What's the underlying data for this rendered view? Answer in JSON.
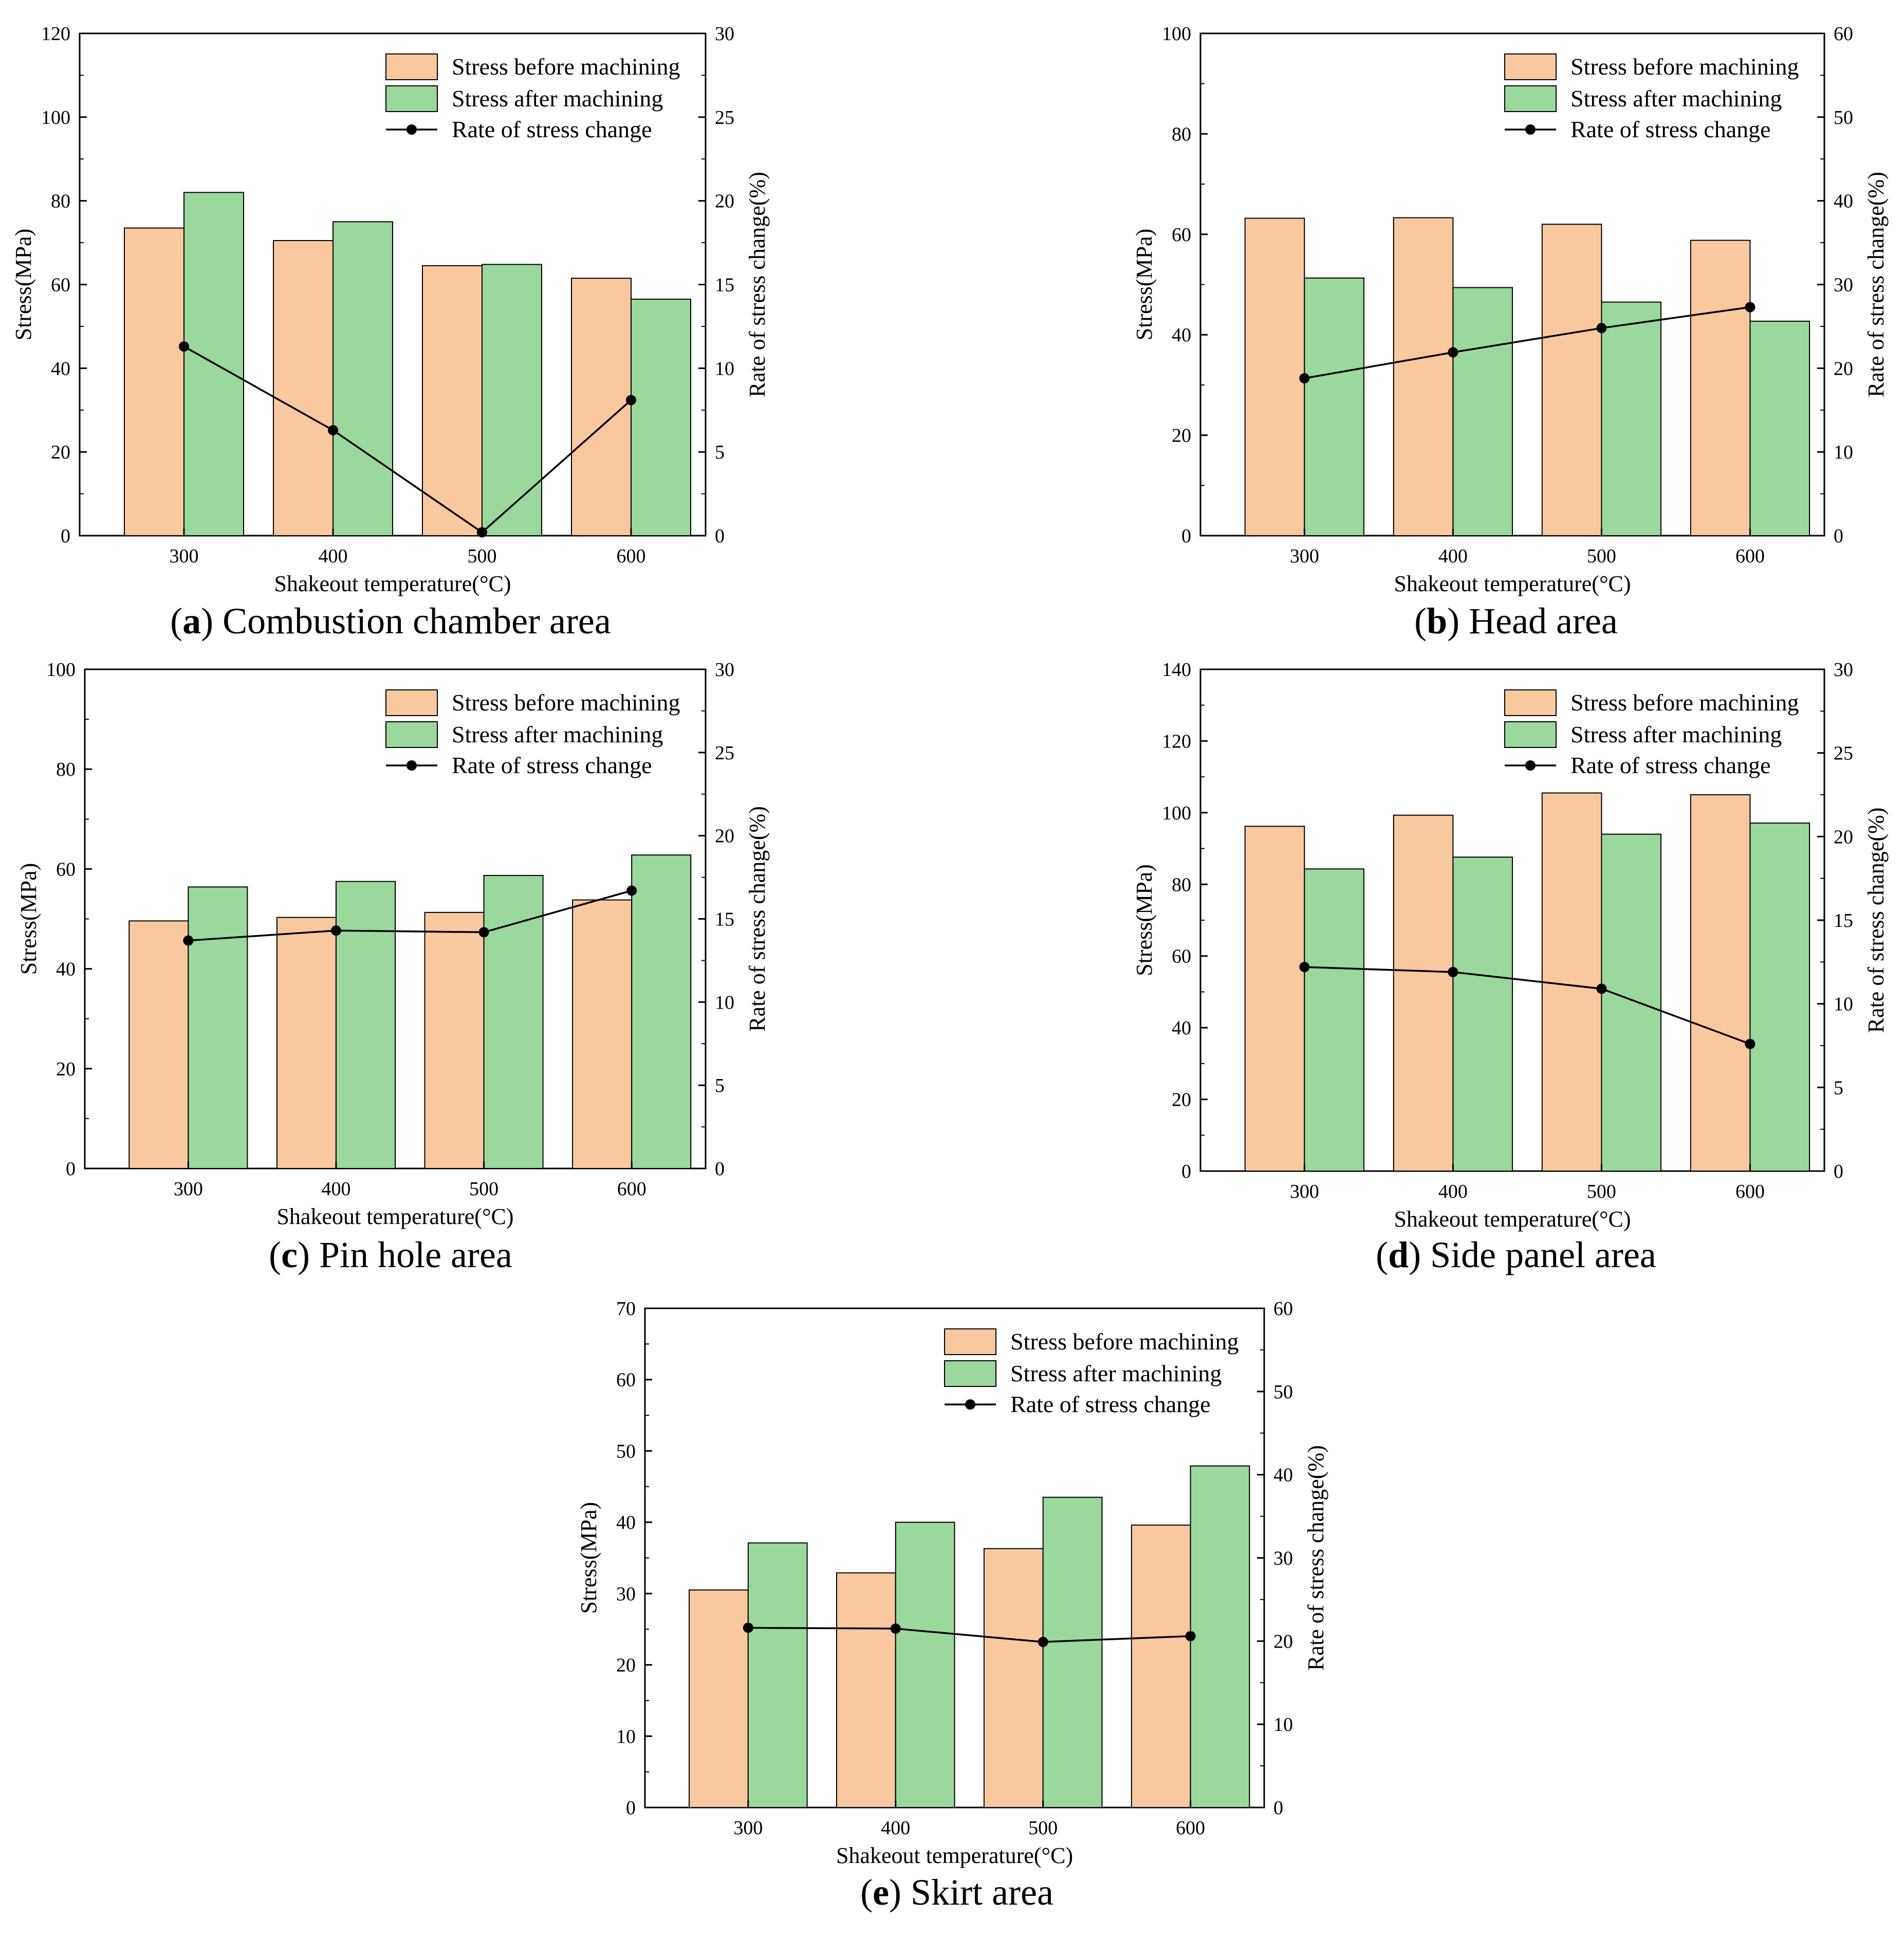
{
  "colors": {
    "before": "#f9c89f",
    "after": "#9ad89c",
    "line": "#000000"
  },
  "chart_data": [
    {
      "id": "a",
      "type": "bar",
      "caption_letter": "a",
      "caption_text": "Combustion chamber area",
      "xlabel": "Shakeout temperature(°C)",
      "ylabel": "Stress(MPa)",
      "y2label": "Rate of stress change(%)",
      "categories": [
        "300",
        "400",
        "500",
        "600"
      ],
      "ylim": [
        0,
        120
      ],
      "yticks": [
        "0",
        "20",
        "40",
        "60",
        "80",
        "100",
        "120"
      ],
      "y2lim": [
        0,
        30
      ],
      "y2ticks": [
        "0",
        "5",
        "10",
        "15",
        "20",
        "25",
        "30"
      ],
      "legend": [
        "Stress before machining",
        "Stress after machining",
        "Rate of stress change"
      ],
      "series": [
        {
          "name": "Stress before machining",
          "kind": "bar",
          "values": [
            73.5,
            70.5,
            64.5,
            61.5
          ]
        },
        {
          "name": "Stress after machining",
          "kind": "bar",
          "values": [
            82,
            75,
            64.8,
            56.5
          ]
        },
        {
          "name": "Rate of stress change",
          "kind": "line",
          "axis": "right",
          "values": [
            11.3,
            6.3,
            0.2,
            8.1
          ]
        }
      ]
    },
    {
      "id": "b",
      "type": "bar",
      "caption_letter": "b",
      "caption_text": "Head area",
      "xlabel": "Shakeout temperature(°C)",
      "ylabel": "Stress(MPa)",
      "y2label": "Rate of stress change(%)",
      "categories": [
        "300",
        "400",
        "500",
        "600"
      ],
      "ylim": [
        0,
        100
      ],
      "yticks": [
        "0",
        "20",
        "40",
        "60",
        "80",
        "100"
      ],
      "y2lim": [
        0,
        60
      ],
      "y2ticks": [
        "0",
        "10",
        "20",
        "30",
        "40",
        "50",
        "60"
      ],
      "legend": [
        "Stress before machining",
        "Stress after machining",
        "Rate of stress change"
      ],
      "series": [
        {
          "name": "Stress before machining",
          "kind": "bar",
          "values": [
            63.2,
            63.3,
            62,
            58.8
          ]
        },
        {
          "name": "Stress after machining",
          "kind": "bar",
          "values": [
            51.3,
            49.4,
            46.5,
            42.7
          ]
        },
        {
          "name": "Rate of stress change",
          "kind": "line",
          "axis": "right",
          "values": [
            18.8,
            21.9,
            24.8,
            27.3
          ]
        }
      ]
    },
    {
      "id": "c",
      "type": "bar",
      "caption_letter": "c",
      "caption_text": "Pin hole area",
      "xlabel": "Shakeout temperature(°C)",
      "ylabel": "Stress(MPa)",
      "y2label": "Rate of stress change(%)",
      "categories": [
        "300",
        "400",
        "500",
        "600"
      ],
      "ylim": [
        0,
        100
      ],
      "yticks": [
        "0",
        "20",
        "40",
        "60",
        "80",
        "100"
      ],
      "y2lim": [
        0,
        30
      ],
      "y2ticks": [
        "0",
        "5",
        "10",
        "15",
        "20",
        "25",
        "30"
      ],
      "legend": [
        "Stress before machining",
        "Stress after machining",
        "Rate of stress change"
      ],
      "series": [
        {
          "name": "Stress before machining",
          "kind": "bar",
          "values": [
            49.6,
            50.3,
            51.3,
            53.8
          ]
        },
        {
          "name": "Stress after machining",
          "kind": "bar",
          "values": [
            56.4,
            57.5,
            58.7,
            62.8
          ]
        },
        {
          "name": "Rate of stress change",
          "kind": "line",
          "axis": "right",
          "values": [
            13.7,
            14.3,
            14.2,
            16.7
          ]
        }
      ]
    },
    {
      "id": "d",
      "type": "bar",
      "caption_letter": "d",
      "caption_text": "Side panel area",
      "xlabel": "Shakeout temperature(°C)",
      "ylabel": "Stress(MPa)",
      "y2label": "Rate of stress change(%)",
      "categories": [
        "300",
        "400",
        "500",
        "600"
      ],
      "ylim": [
        0,
        140
      ],
      "yticks": [
        "0",
        "20",
        "40",
        "60",
        "80",
        "100",
        "120",
        "140"
      ],
      "y2lim": [
        0,
        30
      ],
      "y2ticks": [
        "0",
        "5",
        "10",
        "15",
        "20",
        "25",
        "30"
      ],
      "legend": [
        "Stress before machining",
        "Stress after machining",
        "Rate of stress change"
      ],
      "series": [
        {
          "name": "Stress before machining",
          "kind": "bar",
          "values": [
            96.2,
            99.3,
            105.5,
            105
          ]
        },
        {
          "name": "Stress after machining",
          "kind": "bar",
          "values": [
            84.3,
            87.6,
            94,
            97.1
          ]
        },
        {
          "name": "Rate of stress change",
          "kind": "line",
          "axis": "right",
          "values": [
            12.2,
            11.9,
            10.9,
            7.6
          ]
        }
      ]
    },
    {
      "id": "e",
      "type": "bar",
      "caption_letter": "e",
      "caption_text": "Skirt area",
      "xlabel": "Shakeout temperature(°C)",
      "ylabel": "Stress(MPa)",
      "y2label": "Rate of stress change(%)",
      "categories": [
        "300",
        "400",
        "500",
        "600"
      ],
      "ylim": [
        0,
        70
      ],
      "yticks": [
        "0",
        "10",
        "20",
        "30",
        "40",
        "50",
        "60",
        "70"
      ],
      "y2lim": [
        0,
        60
      ],
      "y2ticks": [
        "0",
        "10",
        "20",
        "30",
        "40",
        "50",
        "60"
      ],
      "legend": [
        "Stress before machining",
        "Stress after machining",
        "Rate of stress change"
      ],
      "series": [
        {
          "name": "Stress before machining",
          "kind": "bar",
          "values": [
            30.5,
            32.9,
            36.3,
            39.6
          ]
        },
        {
          "name": "Stress after machining",
          "kind": "bar",
          "values": [
            37.1,
            40,
            43.5,
            47.9
          ]
        },
        {
          "name": "Rate of stress change",
          "kind": "line",
          "axis": "right",
          "values": [
            21.6,
            21.5,
            19.9,
            20.6
          ]
        }
      ]
    }
  ]
}
